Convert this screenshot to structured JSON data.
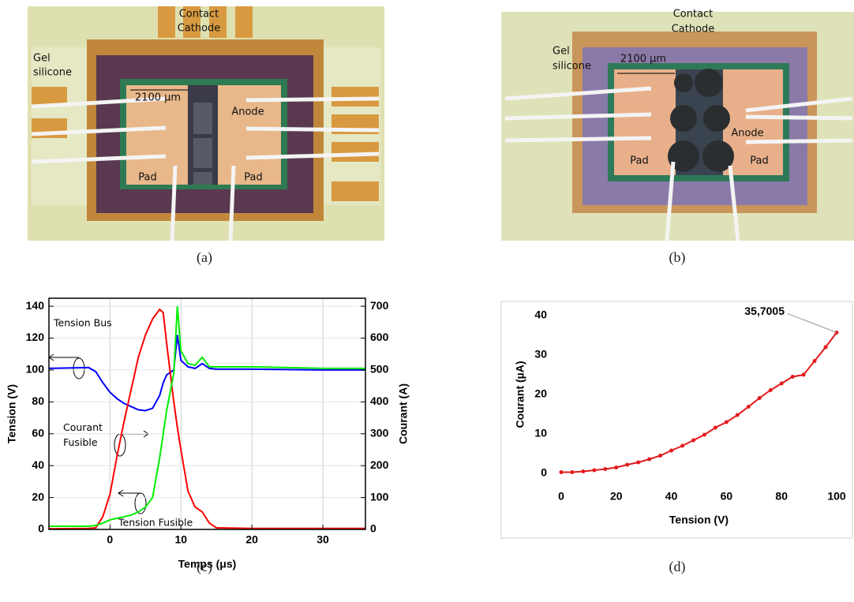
{
  "figures": [
    {
      "caption": "(a)",
      "labels": [
        "Contact",
        "Cathode",
        "Gel",
        "silicone",
        "2100 µm",
        "Anode",
        "Pad",
        "Pad"
      ]
    },
    {
      "caption": "(b)",
      "labels": [
        "Contact",
        "Cathode",
        "Gel",
        "silicone",
        "2100 µm",
        "Anode",
        "Pad",
        "Pad"
      ]
    }
  ],
  "chart_data": [
    {
      "type": "line",
      "caption": "(c)",
      "xlabel": "Temps (μs)",
      "ylabel": "Tension (V)",
      "y2label": "Courant (A)",
      "xlim": [
        -8.6,
        36
      ],
      "xticks": [
        0,
        10,
        20,
        30
      ],
      "ylim": [
        0,
        145
      ],
      "yticks": [
        0,
        20,
        40,
        60,
        80,
        100,
        120,
        140
      ],
      "y2lim": [
        0,
        725
      ],
      "y2ticks": [
        0,
        100,
        200,
        300,
        400,
        500,
        600,
        700
      ],
      "grid": true,
      "x": [
        -8.6,
        -3,
        -2,
        -1,
        0,
        1,
        2,
        3,
        4,
        5,
        6,
        7,
        7.5,
        8,
        9,
        9.5,
        10,
        11,
        12,
        13,
        14,
        15,
        20,
        30,
        36
      ],
      "series": [
        {
          "name": "Tension Bus",
          "color": "#0000ff",
          "axis": "y",
          "values": [
            101,
            101.5,
            99,
            92,
            86,
            82,
            79,
            77,
            75,
            74.5,
            76,
            84,
            92,
            97,
            100,
            122,
            106,
            102,
            101,
            104,
            101,
            100.5,
            100.5,
            100,
            100
          ]
        },
        {
          "name": "Courant Fusible",
          "color": "#ff0000",
          "axis": "y2",
          "values": [
            2,
            3,
            5,
            40,
            110,
            230,
            340,
            440,
            540,
            610,
            660,
            690,
            680,
            580,
            400,
            320,
            250,
            120,
            70,
            55,
            20,
            5,
            3,
            3,
            3
          ]
        },
        {
          "name": "Tension Fusible",
          "color": "#00ee00",
          "axis": "y",
          "values": [
            2,
            2,
            2.5,
            4,
            6,
            7,
            8,
            9,
            11,
            14,
            20,
            45,
            60,
            75,
            98,
            140,
            112,
            104,
            103,
            108,
            102,
            102,
            102,
            101,
            101
          ]
        }
      ]
    },
    {
      "type": "scatter",
      "caption": "(d)",
      "xlabel": "Tension (V)",
      "ylabel": "Courant (µA)",
      "xlim": [
        0,
        100
      ],
      "xticks": [
        0,
        20,
        40,
        60,
        80,
        100
      ],
      "ylim": [
        0,
        40
      ],
      "yticks": [
        0,
        10,
        20,
        30,
        40
      ],
      "color": "#e31a1c",
      "line": true,
      "x": [
        0,
        4,
        8,
        12,
        16,
        20,
        24,
        28,
        32,
        36,
        40,
        44,
        48,
        52,
        56,
        60,
        64,
        68,
        72,
        76,
        80,
        84,
        88,
        92,
        96,
        100
      ],
      "values": [
        0.3,
        0.3,
        0.5,
        0.8,
        1.1,
        1.5,
        2.2,
        2.8,
        3.6,
        4.5,
        5.8,
        7,
        8.4,
        9.8,
        11.6,
        13,
        14.8,
        16.9,
        19.1,
        21.1,
        22.8,
        24.5,
        25,
        28.5,
        32,
        35.7005
      ],
      "value_labels": [
        null,
        null,
        null,
        null,
        null,
        null,
        null,
        null,
        null,
        null,
        null,
        null,
        null,
        null,
        null,
        null,
        null,
        null,
        null,
        null,
        null,
        null,
        null,
        null,
        null,
        "35,7005"
      ]
    }
  ]
}
